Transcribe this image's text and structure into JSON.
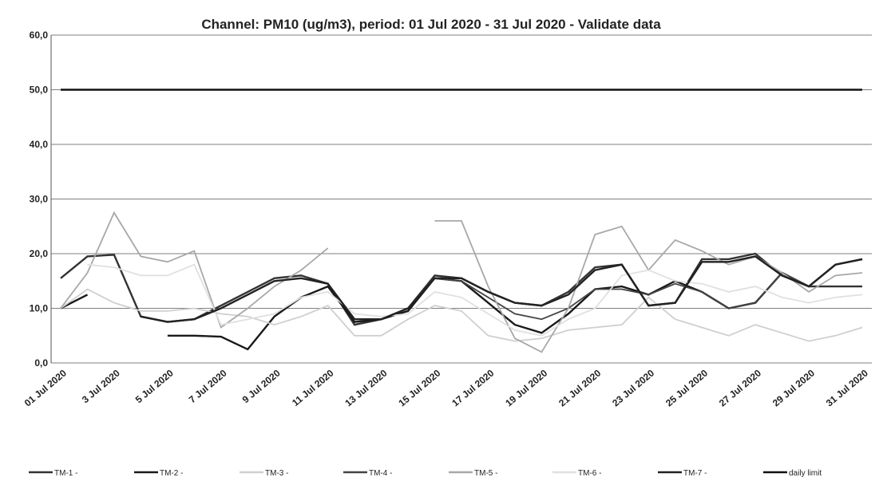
{
  "chart_data": {
    "type": "line",
    "title": "Channel: PM10 (ug/m3), period: 01 Jul 2020 - 31 Jul 2020 - Validate data",
    "categories": [
      "01 Jul 2020",
      null,
      "3 Jul 2020",
      null,
      "5 Jul 2020",
      null,
      "7 Jul 2020",
      null,
      "9 Jul 2020",
      null,
      "11 Jul 2020",
      null,
      "13 Jul 2020",
      null,
      "15 Jul 2020",
      null,
      "17 Jul 2020",
      null,
      "19 Jul 2020",
      null,
      "21 Jul 2020",
      null,
      "23 Jul 2020",
      null,
      "25 Jul 2020",
      null,
      "27 Jul 2020",
      null,
      "29 Jul 2020",
      null,
      "31 Jul 2020"
    ],
    "ylim": [
      0,
      60
    ],
    "yticks": [
      {
        "value": 0,
        "label": "0,0"
      },
      {
        "value": 10,
        "label": "10,0"
      },
      {
        "value": 20,
        "label": "20,0"
      },
      {
        "value": 30,
        "label": "30,0"
      },
      {
        "value": 40,
        "label": "40,0"
      },
      {
        "value": 50,
        "label": "50,0"
      },
      {
        "value": 60,
        "label": "60,0"
      }
    ],
    "grid": true,
    "series": [
      {
        "name": "TM-1 -",
        "color": "#333333",
        "values": [
          15.5,
          19.5,
          19.8,
          8.5,
          7.5,
          8,
          10.5,
          13,
          15.5,
          16,
          14.5,
          7,
          8,
          10,
          16,
          15.5,
          13,
          11,
          10.5,
          13,
          17.5,
          18,
          10.5,
          11,
          19,
          19,
          20,
          16,
          14,
          14,
          14
        ]
      },
      {
        "name": "TM-2 -",
        "color": "#1a1a1a",
        "values": [
          10,
          12.5,
          null,
          null,
          5,
          5,
          4.8,
          2.5,
          8.5,
          12,
          14,
          7.5,
          8,
          9.5,
          15.5,
          15,
          11,
          7,
          5.5,
          9,
          13.5,
          14,
          12.5,
          15,
          13,
          10,
          11,
          16.5,
          14,
          18,
          19
        ]
      },
      {
        "name": "TM-3 -",
        "color": "#cfcfcf",
        "values": [
          10,
          13.5,
          11,
          9.5,
          9.5,
          10,
          9,
          8.5,
          7,
          8.5,
          10.5,
          5,
          5,
          8,
          10.5,
          9.5,
          5,
          4,
          4.5,
          6,
          6.5,
          7,
          12,
          8,
          6.5,
          5,
          7,
          5.5,
          4,
          5,
          6.5
        ]
      },
      {
        "name": "TM-4 -",
        "color": "#444444",
        "values": [
          null,
          null,
          null,
          null,
          null,
          null,
          null,
          null,
          null,
          null,
          null,
          null,
          null,
          null,
          15.5,
          15,
          12,
          9,
          8,
          10,
          13.5,
          13.5,
          12.5,
          14.5,
          13,
          10,
          11,
          16.5,
          14,
          null,
          null
        ]
      },
      {
        "name": "TM-5 -",
        "color": "#a8a8a8",
        "values": [
          10,
          16.5,
          27.5,
          19.5,
          18.5,
          20.5,
          6.5,
          10,
          14,
          17,
          21,
          null,
          null,
          null,
          26,
          26,
          14,
          4.5,
          2,
          10,
          23.5,
          25,
          17,
          22.5,
          20.5,
          18,
          19.5,
          16.5,
          13,
          16,
          16.5
        ]
      },
      {
        "name": "TM-6 -",
        "color": "#e0e0e0",
        "values": [
          null,
          18,
          17.5,
          16,
          16,
          18,
          7,
          8,
          9,
          12,
          13,
          9,
          8.5,
          9,
          13,
          12,
          9,
          6,
          5,
          8,
          10,
          16,
          17,
          15,
          14.5,
          13,
          14,
          12,
          11,
          12,
          12.5
        ]
      },
      {
        "name": "TM-7 -",
        "color": "#222222",
        "values": [
          null,
          null,
          null,
          8.5,
          7.5,
          8,
          10,
          12.5,
          15,
          15.5,
          14.5,
          8,
          8,
          10,
          15.5,
          15.5,
          13,
          11,
          10.5,
          12.5,
          17,
          18,
          10.5,
          11,
          18.5,
          18.5,
          19.5,
          16,
          14,
          18,
          19
        ]
      },
      {
        "name": "daily limit",
        "color": "#111111",
        "values": [
          50,
          50,
          50,
          50,
          50,
          50,
          50,
          50,
          50,
          50,
          50,
          50,
          50,
          50,
          50,
          50,
          50,
          50,
          50,
          50,
          50,
          50,
          50,
          50,
          50,
          50,
          50,
          50,
          50,
          50,
          50
        ]
      }
    ]
  }
}
